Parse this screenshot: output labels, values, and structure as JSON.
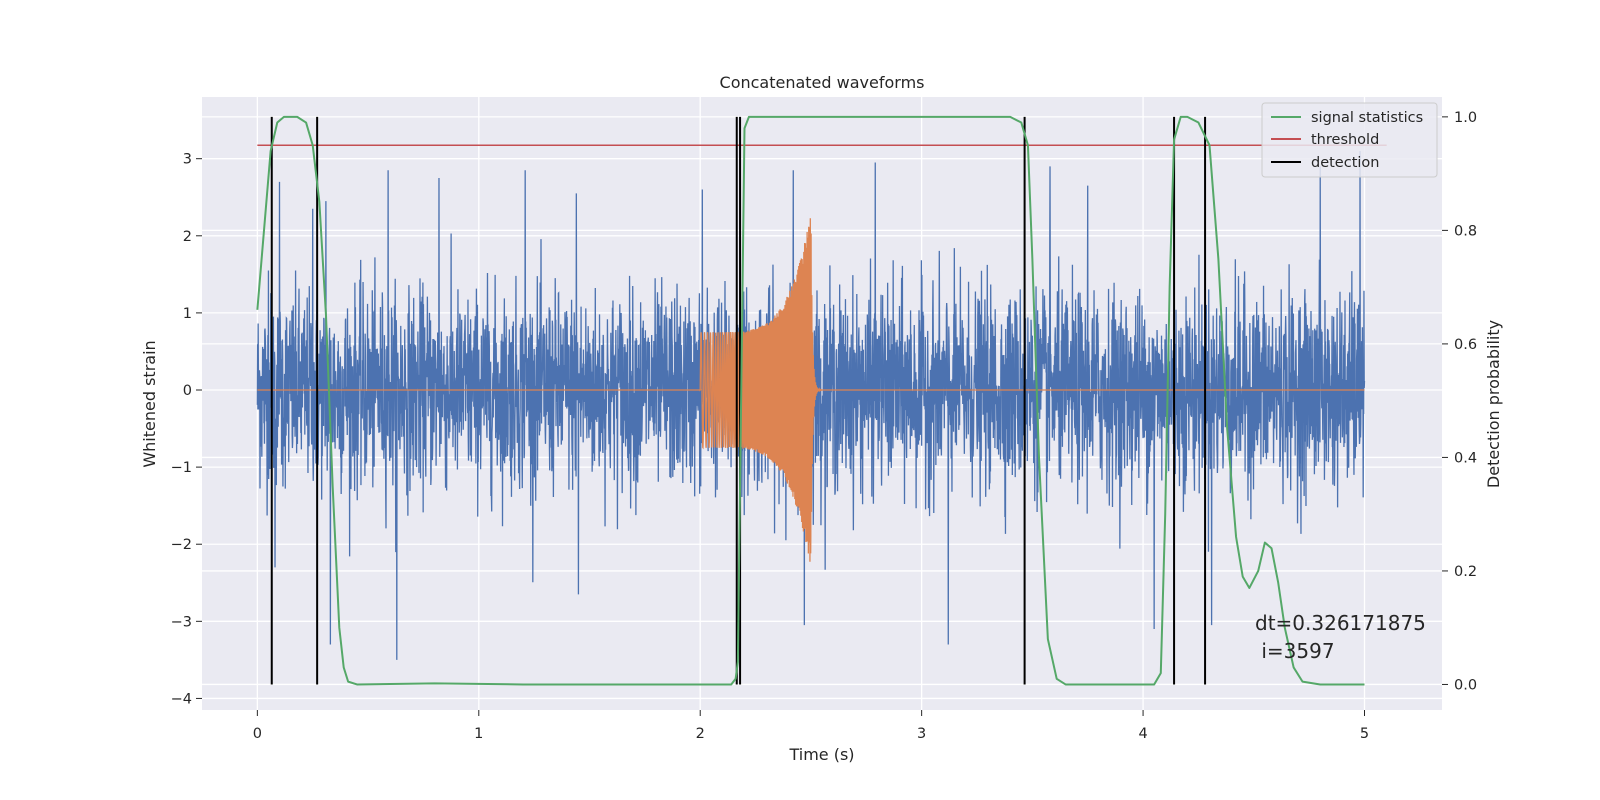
{
  "chart_data": {
    "type": "line",
    "title": "Concatenated waveforms",
    "xlabel": "Time (s)",
    "ylabel": "Whitened strain",
    "ylabel_right": "Detection probability",
    "xlim": [
      -0.25,
      5.35
    ],
    "ylim": [
      -4.15,
      3.8
    ],
    "ylim_right": [
      -0.045,
      1.035
    ],
    "x_ticks": [
      0,
      1,
      2,
      3,
      4,
      5
    ],
    "x_tick_labels": [
      "0",
      "1",
      "2",
      "3",
      "4",
      "5"
    ],
    "y_ticks": [
      -4,
      -3,
      -2,
      -1,
      0,
      1,
      2,
      3
    ],
    "y_tick_labels": [
      "−4",
      "−3",
      "−2",
      "−1",
      "0",
      "1",
      "2",
      "3"
    ],
    "y_ticks_right": [
      0.0,
      0.2,
      0.4,
      0.6,
      0.8,
      1.0
    ],
    "y_tick_labels_right": [
      "0.0",
      "0.2",
      "0.4",
      "0.6",
      "0.8",
      "1.0"
    ],
    "grid": true,
    "legend_position": "top-right",
    "colors": {
      "plot_bg": "#eaeaf2",
      "grid": "#ffffff",
      "strain": "#4c72b0",
      "injected_signal": "#dd8452",
      "signal_statistics": "#55a868",
      "threshold": "#c44e52",
      "detection": "#000000"
    },
    "series": [
      {
        "role": "strain",
        "axis": "left",
        "x_range": [
          0,
          5
        ],
        "envelope_abs_max_typical": 2.5,
        "spikes": [
          {
            "x": 0.05,
            "y": 1.55
          },
          {
            "x": 0.08,
            "y": -2.3
          },
          {
            "x": 0.1,
            "y": 2.7
          },
          {
            "x": 0.25,
            "y": 2.35
          },
          {
            "x": 0.31,
            "y": 2.45
          },
          {
            "x": 0.33,
            "y": -3.3
          },
          {
            "x": 0.59,
            "y": 2.85
          },
          {
            "x": 0.63,
            "y": -3.5
          },
          {
            "x": 0.82,
            "y": 2.75
          },
          {
            "x": 1.21,
            "y": 2.85
          },
          {
            "x": 1.44,
            "y": 2.55
          },
          {
            "x": 1.45,
            "y": -2.65
          },
          {
            "x": 2.01,
            "y": 2.6
          },
          {
            "x": 2.42,
            "y": 2.85
          },
          {
            "x": 2.47,
            "y": -3.05
          },
          {
            "x": 2.79,
            "y": 2.95
          },
          {
            "x": 3.12,
            "y": -3.3
          },
          {
            "x": 3.58,
            "y": 2.9
          },
          {
            "x": 3.75,
            "y": 2.65
          },
          {
            "x": 4.05,
            "y": -3.1
          },
          {
            "x": 4.31,
            "y": -3.05
          },
          {
            "x": 4.8,
            "y": 2.9
          },
          {
            "x": 4.98,
            "y": 3.1
          }
        ]
      },
      {
        "role": "injected-signal",
        "axis": "left",
        "x_range": [
          0,
          5
        ],
        "chirp_start": 2.0,
        "chirp_peak": 2.5,
        "chirp_end": 2.55,
        "amp_start": 0.75,
        "amp_peak_high": 2.3,
        "amp_peak_low": -2.3
      },
      {
        "name": "signal statistics",
        "axis": "right",
        "x": [
          0.0,
          0.03,
          0.06,
          0.09,
          0.12,
          0.18,
          0.22,
          0.25,
          0.28,
          0.31,
          0.34,
          0.37,
          0.39,
          0.41,
          0.45,
          0.8,
          1.2,
          2.0,
          2.14,
          2.16,
          2.17,
          2.18,
          2.2,
          2.22,
          2.6,
          3.4,
          3.45,
          3.48,
          3.5,
          3.53,
          3.57,
          3.61,
          3.65,
          3.8,
          4.05,
          4.08,
          4.1,
          4.12,
          4.14,
          4.17,
          4.2,
          4.25,
          4.3,
          4.34,
          4.38,
          4.42,
          4.45,
          4.48,
          4.52,
          4.55,
          4.58,
          4.61,
          4.64,
          4.68,
          4.72,
          4.8,
          5.0
        ],
        "y": [
          0.66,
          0.8,
          0.94,
          0.99,
          1.0,
          1.0,
          0.99,
          0.95,
          0.85,
          0.65,
          0.35,
          0.1,
          0.03,
          0.005,
          0.0,
          0.002,
          0.0,
          0.0,
          0.0,
          0.01,
          0.04,
          0.35,
          0.98,
          1.0,
          1.0,
          1.0,
          0.99,
          0.95,
          0.75,
          0.4,
          0.08,
          0.01,
          0.0,
          0.0,
          0.0,
          0.02,
          0.3,
          0.7,
          0.96,
          1.0,
          1.0,
          0.99,
          0.95,
          0.75,
          0.45,
          0.26,
          0.19,
          0.17,
          0.2,
          0.25,
          0.24,
          0.18,
          0.1,
          0.03,
          0.005,
          0.0,
          0.0
        ]
      },
      {
        "name": "threshold",
        "axis": "right",
        "x": [
          0,
          5.1
        ],
        "y": [
          0.95,
          0.95
        ]
      },
      {
        "name": "detection",
        "axis": "right",
        "vlines": [
          0.065,
          0.27,
          2.165,
          2.18,
          3.465,
          4.14,
          4.28
        ],
        "y_range": [
          0.0,
          1.0
        ]
      }
    ],
    "annotation": {
      "line1": "dt=0.326171875",
      "line2": " i=3597"
    }
  }
}
